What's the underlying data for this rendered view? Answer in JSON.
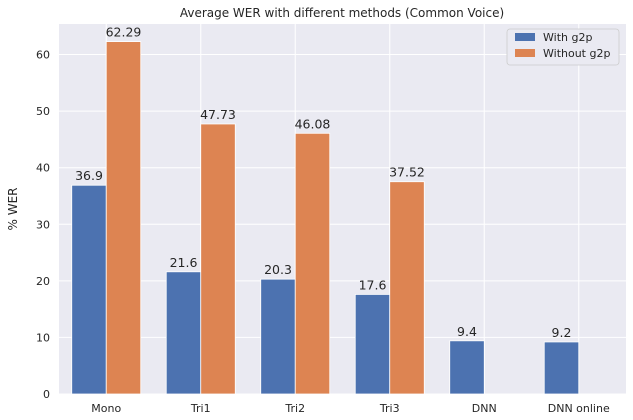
{
  "chart_data": {
    "type": "bar",
    "title": "Average WER with different methods (Common Voice)",
    "xlabel": "",
    "ylabel": "% WER",
    "categories": [
      "Mono",
      "Tri1",
      "Tri2",
      "Tri3",
      "DNN",
      "DNN online"
    ],
    "series": [
      {
        "name": "With g2p",
        "color": "#4c72b0",
        "values": [
          36.9,
          21.6,
          20.3,
          17.6,
          9.4,
          9.2
        ],
        "labels": [
          "36.9",
          "21.6",
          "20.3",
          "17.6",
          "9.4",
          "9.2"
        ]
      },
      {
        "name": "Without g2p",
        "color": "#dd8452",
        "values": [
          62.29,
          47.73,
          46.08,
          37.52,
          null,
          null
        ],
        "labels": [
          "62.29",
          "47.73",
          "46.08",
          "37.52",
          "",
          ""
        ]
      }
    ],
    "ylim": [
      0,
      65.4
    ],
    "yticks": [
      0,
      10,
      20,
      30,
      40,
      50,
      60
    ],
    "grid": true,
    "legend_position": "top-right",
    "background": "#eaeaf2"
  }
}
